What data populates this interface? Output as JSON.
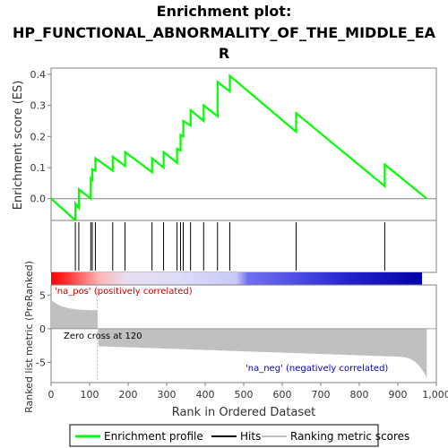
{
  "chart_data": {
    "type": "line",
    "title_lines": [
      "Enrichment plot:",
      "HP_FUNCTIONAL_ABNORMALITY_OF_THE_MIDDLE_EA",
      "R"
    ],
    "xlabel": "Rank in Ordered Dataset",
    "ylabel_top": "Enrichment score (ES)",
    "ylabel_bottom": "Ranked list metric (PreRanked)",
    "xlim": [
      0,
      1000
    ],
    "es_ylim": [
      -0.07,
      0.42
    ],
    "metric_ylim": [
      -8,
      6.5
    ],
    "x_ticks": [
      0,
      100,
      200,
      300,
      400,
      500,
      600,
      700,
      800,
      900,
      1000
    ],
    "x_tick_labels": [
      "0",
      "100",
      "200",
      "300",
      "400",
      "500",
      "600",
      "700",
      "800",
      "900",
      "1,000"
    ],
    "es_ticks": [
      0.0,
      0.1,
      0.2,
      0.3,
      0.4
    ],
    "es_tick_labels": [
      "0.0",
      "0.1",
      "0.2",
      "0.3",
      "0.4"
    ],
    "metric_ticks": [
      5,
      0,
      -5
    ],
    "metric_tick_labels": [
      "5",
      "0",
      "-5"
    ],
    "n_genes": 975,
    "hits": [
      63,
      72,
      103,
      107,
      115,
      160,
      192,
      262,
      292,
      327,
      336,
      343,
      362,
      396,
      432,
      464,
      636,
      866
    ],
    "es_points": [
      [
        0,
        0.0
      ],
      [
        63,
        -0.07
      ],
      [
        63,
        -0.015
      ],
      [
        72,
        -0.03
      ],
      [
        72,
        0.03
      ],
      [
        103,
        0.0
      ],
      [
        103,
        0.065
      ],
      [
        107,
        0.06
      ],
      [
        107,
        0.095
      ],
      [
        115,
        0.09
      ],
      [
        115,
        0.13
      ],
      [
        160,
        0.09
      ],
      [
        160,
        0.135
      ],
      [
        192,
        0.105
      ],
      [
        192,
        0.15
      ],
      [
        262,
        0.085
      ],
      [
        262,
        0.13
      ],
      [
        292,
        0.1
      ],
      [
        292,
        0.15
      ],
      [
        327,
        0.115
      ],
      [
        327,
        0.16
      ],
      [
        336,
        0.155
      ],
      [
        336,
        0.205
      ],
      [
        343,
        0.2
      ],
      [
        343,
        0.25
      ],
      [
        362,
        0.235
      ],
      [
        362,
        0.285
      ],
      [
        396,
        0.25
      ],
      [
        396,
        0.3
      ],
      [
        432,
        0.265
      ],
      [
        432,
        0.375
      ],
      [
        464,
        0.345
      ],
      [
        464,
        0.395
      ],
      [
        636,
        0.215
      ],
      [
        636,
        0.275
      ],
      [
        866,
        0.04
      ],
      [
        866,
        0.11
      ],
      [
        975,
        0.0
      ]
    ],
    "zero_cross_rank": 120,
    "zero_cross_label": "Zero cross at 120",
    "pos_label": "'na_pos' (positively correlated)",
    "neg_label": "'na_neg' (negatively correlated)",
    "legend": [
      {
        "key": "es",
        "label": "Enrichment profile",
        "color": "#00ff00"
      },
      {
        "key": "hits",
        "label": "Hits",
        "color": "#000000"
      },
      {
        "key": "metric",
        "label": "Ranking metric scores",
        "color": "#c0c0c0"
      }
    ],
    "colors": {
      "es_line": "#00ff00",
      "hit_line": "#000000",
      "metric_fill": "#c0c0c0",
      "frame": "#808080",
      "grid_zero": "#808080"
    }
  }
}
